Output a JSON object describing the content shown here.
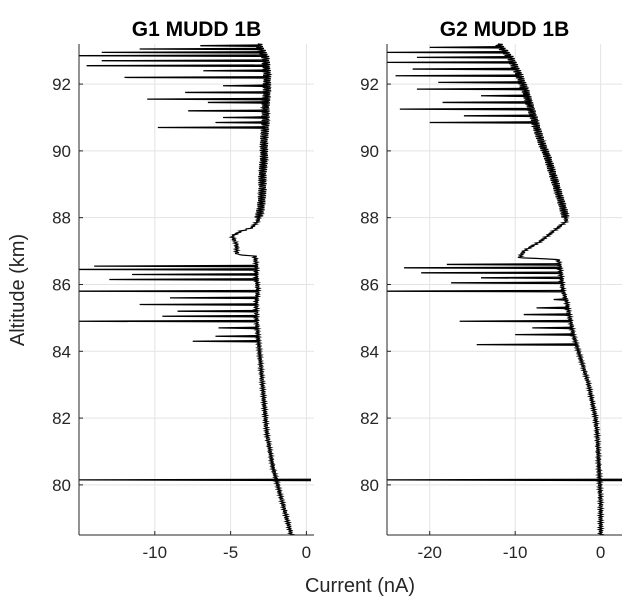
{
  "chart_data": [
    {
      "type": "line",
      "title": "G1 MUDD 1B",
      "ylabel": "Altitude (km)",
      "xlim": [
        -15,
        0.5
      ],
      "ylim": [
        78.5,
        93.2
      ],
      "xticks": [
        -10,
        -5,
        0
      ],
      "yticks": [
        80,
        82,
        84,
        86,
        88,
        90,
        92
      ],
      "grid": true,
      "series": [
        {
          "trace": [
            [
              -1.0,
              78.5
            ],
            [
              -1.3,
              79.0
            ],
            [
              -1.6,
              79.5
            ],
            [
              -1.9,
              80.0
            ],
            [
              -2.2,
              80.5
            ],
            [
              -2.4,
              81.0
            ],
            [
              -2.6,
              81.5
            ],
            [
              -2.7,
              82.0
            ],
            [
              -2.8,
              82.5
            ],
            [
              -2.9,
              83.0
            ],
            [
              -3.0,
              83.5
            ],
            [
              -3.1,
              84.0
            ],
            [
              -3.2,
              84.5
            ],
            [
              -3.3,
              85.0
            ],
            [
              -3.3,
              85.5
            ],
            [
              -3.2,
              85.85
            ],
            [
              -3.3,
              86.2
            ],
            [
              -3.3,
              86.6
            ],
            [
              -3.4,
              86.85
            ],
            [
              -4.6,
              86.9
            ],
            [
              -4.6,
              87.2
            ],
            [
              -4.9,
              87.45
            ],
            [
              -4.3,
              87.6
            ],
            [
              -3.6,
              87.7
            ],
            [
              -3.2,
              87.9
            ],
            [
              -3.0,
              88.3
            ],
            [
              -2.9,
              88.8
            ],
            [
              -2.9,
              89.3
            ],
            [
              -2.8,
              89.8
            ],
            [
              -2.8,
              90.3
            ],
            [
              -2.7,
              90.8
            ],
            [
              -2.7,
              91.3
            ],
            [
              -2.6,
              91.8
            ],
            [
              -2.6,
              92.3
            ],
            [
              -2.7,
              92.8
            ],
            [
              -3.2,
              93.2
            ]
          ],
          "spikes": [
            [
              80.15,
              -15,
              0.3
            ],
            [
              84.3,
              -7.5
            ],
            [
              84.45,
              -6.0
            ],
            [
              84.7,
              -5.8
            ],
            [
              84.9,
              -15
            ],
            [
              85.05,
              -9.5
            ],
            [
              85.2,
              -8.5
            ],
            [
              85.4,
              -11.0
            ],
            [
              85.6,
              -9.0
            ],
            [
              85.8,
              -15
            ],
            [
              86.15,
              -13.0
            ],
            [
              86.3,
              -11.5
            ],
            [
              86.45,
              -15
            ],
            [
              86.55,
              -14.0
            ],
            [
              90.7,
              -9.8
            ],
            [
              90.85,
              -6.0
            ],
            [
              91.0,
              -5.5
            ],
            [
              91.2,
              -7.8
            ],
            [
              91.45,
              -6.5
            ],
            [
              91.55,
              -10.5
            ],
            [
              91.75,
              -8.0
            ],
            [
              91.95,
              -5.5
            ],
            [
              92.2,
              -12.0
            ],
            [
              92.4,
              -6.8
            ],
            [
              92.55,
              -14.5
            ],
            [
              92.7,
              -13.5
            ],
            [
              92.85,
              -15
            ],
            [
              92.95,
              -13.5
            ],
            [
              93.05,
              -11.0
            ],
            [
              93.15,
              -7.0
            ]
          ]
        }
      ]
    },
    {
      "type": "line",
      "title": "G2 MUDD 1B",
      "xlim": [
        -25,
        2.5
      ],
      "ylim": [
        78.5,
        93.2
      ],
      "xticks": [
        -20,
        -10,
        0
      ],
      "yticks": [
        80,
        82,
        84,
        86,
        88,
        90,
        92
      ],
      "grid": true,
      "series": [
        {
          "trace": [
            [
              0.0,
              78.5
            ],
            [
              0.0,
              79.0
            ],
            [
              0.0,
              79.5
            ],
            [
              -0.1,
              80.0
            ],
            [
              -0.2,
              80.5
            ],
            [
              -0.3,
              81.0
            ],
            [
              -0.4,
              81.5
            ],
            [
              -0.6,
              82.0
            ],
            [
              -1.0,
              82.5
            ],
            [
              -1.4,
              83.0
            ],
            [
              -2.0,
              83.5
            ],
            [
              -2.6,
              84.0
            ],
            [
              -3.2,
              84.5
            ],
            [
              -3.6,
              85.0
            ],
            [
              -4.0,
              85.5
            ],
            [
              -4.4,
              85.8
            ],
            [
              -4.6,
              86.2
            ],
            [
              -4.8,
              86.6
            ],
            [
              -5.0,
              86.75
            ],
            [
              -9.5,
              86.8
            ],
            [
              -9.0,
              87.0
            ],
            [
              -7.0,
              87.3
            ],
            [
              -5.5,
              87.6
            ],
            [
              -4.0,
              87.9
            ],
            [
              -4.4,
              88.3
            ],
            [
              -5.0,
              88.8
            ],
            [
              -5.6,
              89.3
            ],
            [
              -6.2,
              89.8
            ],
            [
              -7.0,
              90.3
            ],
            [
              -7.6,
              90.8
            ],
            [
              -8.2,
              91.3
            ],
            [
              -8.8,
              91.8
            ],
            [
              -9.6,
              92.3
            ],
            [
              -10.6,
              92.8
            ],
            [
              -12.0,
              93.2
            ]
          ],
          "spikes": [
            [
              80.15,
              -25,
              2.5
            ],
            [
              84.2,
              -14.5
            ],
            [
              84.5,
              -10.0
            ],
            [
              84.7,
              -8.0
            ],
            [
              84.9,
              -16.5
            ],
            [
              85.1,
              -9.0
            ],
            [
              85.3,
              -7.5
            ],
            [
              85.55,
              -5.5
            ],
            [
              85.8,
              -25
            ],
            [
              86.05,
              -17.5
            ],
            [
              86.2,
              -14.0
            ],
            [
              86.35,
              -21.0
            ],
            [
              86.5,
              -23.0
            ],
            [
              86.6,
              -18.0
            ],
            [
              90.85,
              -20.0
            ],
            [
              91.05,
              -16.0
            ],
            [
              91.25,
              -23.5
            ],
            [
              91.45,
              -18.5
            ],
            [
              91.65,
              -14.0
            ],
            [
              91.85,
              -21.5
            ],
            [
              92.05,
              -19.0
            ],
            [
              92.25,
              -24.0
            ],
            [
              92.45,
              -22.0
            ],
            [
              92.65,
              -25
            ],
            [
              92.8,
              -21.5
            ],
            [
              92.95,
              -25
            ],
            [
              93.1,
              -20.0
            ]
          ]
        }
      ]
    }
  ],
  "shared_xlabel": "Current (nA)"
}
